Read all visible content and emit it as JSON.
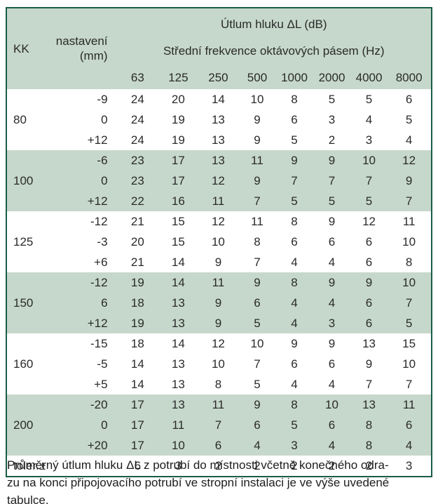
{
  "colors": {
    "band_green": "#c6d8cb",
    "border_green": "#1a5c49",
    "text": "#2a2a2a"
  },
  "table": {
    "title": "Útlum hluku ΔL (dB)",
    "kk_header": "KK",
    "setting_header_line1": "nastavení",
    "setting_header_line2": "(mm)",
    "freq_header": "Střední frekvence oktávových pásem (Hz)",
    "frequencies": [
      "63",
      "125",
      "250",
      "500",
      "1000",
      "2000",
      "4000",
      "8000"
    ],
    "groups": [
      {
        "kk": "80",
        "shaded": false,
        "rows": [
          {
            "setting": "-9",
            "values": [
              "24",
              "20",
              "14",
              "10",
              "8",
              "5",
              "5",
              "6"
            ]
          },
          {
            "setting": "0",
            "values": [
              "24",
              "19",
              "13",
              "9",
              "6",
              "3",
              "4",
              "5"
            ]
          },
          {
            "setting": "+12",
            "values": [
              "24",
              "19",
              "13",
              "9",
              "5",
              "2",
              "3",
              "4"
            ]
          }
        ]
      },
      {
        "kk": "100",
        "shaded": true,
        "rows": [
          {
            "setting": "-6",
            "values": [
              "23",
              "17",
              "13",
              "11",
              "9",
              "9",
              "10",
              "12"
            ]
          },
          {
            "setting": "0",
            "values": [
              "23",
              "17",
              "12",
              "9",
              "7",
              "7",
              "7",
              "9"
            ]
          },
          {
            "setting": "+12",
            "values": [
              "22",
              "16",
              "11",
              "7",
              "5",
              "5",
              "5",
              "7"
            ]
          }
        ]
      },
      {
        "kk": "125",
        "shaded": false,
        "rows": [
          {
            "setting": "-12",
            "values": [
              "21",
              "15",
              "12",
              "11",
              "8",
              "9",
              "12",
              "11"
            ]
          },
          {
            "setting": "-3",
            "values": [
              "20",
              "15",
              "10",
              "8",
              "6",
              "6",
              "6",
              "10"
            ]
          },
          {
            "setting": "+6",
            "values": [
              "21",
              "14",
              "9",
              "7",
              "4",
              "4",
              "6",
              "8"
            ]
          }
        ]
      },
      {
        "kk": "150",
        "shaded": true,
        "rows": [
          {
            "setting": "-12",
            "values": [
              "19",
              "14",
              "11",
              "9",
              "8",
              "9",
              "9",
              "10"
            ]
          },
          {
            "setting": "6",
            "values": [
              "18",
              "13",
              "9",
              "6",
              "4",
              "4",
              "6",
              "7"
            ]
          },
          {
            "setting": "+12",
            "values": [
              "19",
              "13",
              "9",
              "5",
              "4",
              "3",
              "6",
              "5"
            ]
          }
        ]
      },
      {
        "kk": "160",
        "shaded": false,
        "rows": [
          {
            "setting": "-15",
            "values": [
              "18",
              "14",
              "12",
              "10",
              "9",
              "9",
              "13",
              "15"
            ]
          },
          {
            "setting": "-5",
            "values": [
              "14",
              "13",
              "10",
              "7",
              "6",
              "6",
              "9",
              "10"
            ]
          },
          {
            "setting": "+5",
            "values": [
              "14",
              "13",
              "8",
              "5",
              "4",
              "4",
              "7",
              "7"
            ]
          }
        ]
      },
      {
        "kk": "200",
        "shaded": true,
        "rows": [
          {
            "setting": "-20",
            "values": [
              "17",
              "13",
              "11",
              "9",
              "8",
              "10",
              "13",
              "11"
            ]
          },
          {
            "setting": "0",
            "values": [
              "17",
              "11",
              "7",
              "6",
              "5",
              "6",
              "8",
              "6"
            ]
          },
          {
            "setting": "+20",
            "values": [
              "17",
              "10",
              "6",
              "4",
              "3",
              "4",
              "8",
              "4"
            ]
          }
        ]
      }
    ],
    "tolerance_row": {
      "label": "toler.±",
      "values": [
        "6",
        "3",
        "2",
        "2",
        "2",
        "2",
        "2",
        "3"
      ]
    }
  },
  "caption": {
    "lines": [
      "Průměrný útlum hluku ΔL z potrubí do místnosti včetně konečného odra-",
      "zu na konci připojovacího potrubí ve stropní instalaci je ve výše uvedené",
      "tabulce."
    ]
  }
}
